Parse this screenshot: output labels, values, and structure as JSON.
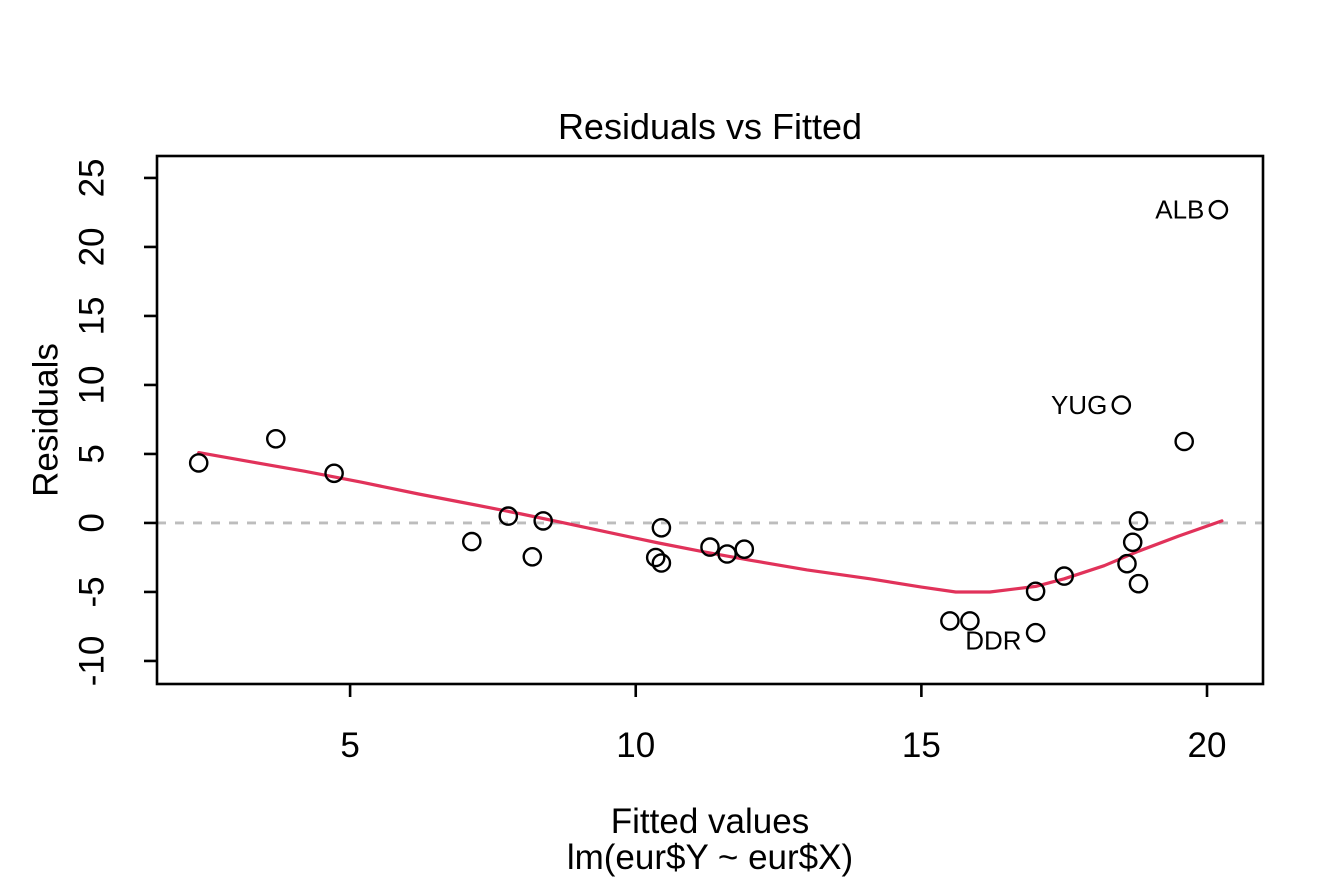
{
  "chart_data": {
    "type": "scatter",
    "title": "Residuals vs Fitted",
    "xlabel": "Fitted values",
    "sublabel": "lm(eur$Y ~ eur$X)",
    "ylabel": "Residuals",
    "xlim": [
      1.62,
      20.98
    ],
    "ylim": [
      -11.67,
      26.59
    ],
    "x_ticks": [
      5,
      10,
      15,
      20
    ],
    "y_ticks": [
      -10,
      -5,
      0,
      5,
      10,
      15,
      20,
      25
    ],
    "grid": false,
    "legend": "none",
    "zero_line_y": 0,
    "colors": {
      "point_stroke": "#000000",
      "smoother": "#E1325A",
      "zero_line": "#BDBDBD",
      "axis": "#000000",
      "background": "#FFFFFF"
    },
    "points": [
      {
        "x": 2.35,
        "y": 4.35
      },
      {
        "x": 3.7,
        "y": 6.1
      },
      {
        "x": 4.72,
        "y": 3.6
      },
      {
        "x": 7.13,
        "y": -1.35
      },
      {
        "x": 7.77,
        "y": 0.5
      },
      {
        "x": 8.19,
        "y": -2.45
      },
      {
        "x": 8.38,
        "y": 0.15
      },
      {
        "x": 10.35,
        "y": -2.5
      },
      {
        "x": 10.45,
        "y": -0.35
      },
      {
        "x": 10.45,
        "y": -2.9
      },
      {
        "x": 11.3,
        "y": -1.75
      },
      {
        "x": 11.6,
        "y": -2.25
      },
      {
        "x": 11.9,
        "y": -1.9
      },
      {
        "x": 15.5,
        "y": -7.1
      },
      {
        "x": 15.85,
        "y": -7.1
      },
      {
        "x": 17.0,
        "y": -4.95
      },
      {
        "x": 17.0,
        "y": -7.95,
        "label": "DDR",
        "label_dy": 8
      },
      {
        "x": 17.5,
        "y": -3.85
      },
      {
        "x": 18.5,
        "y": 8.55,
        "label": "YUG"
      },
      {
        "x": 18.6,
        "y": -2.95
      },
      {
        "x": 18.7,
        "y": -1.4
      },
      {
        "x": 18.8,
        "y": 0.15
      },
      {
        "x": 18.8,
        "y": -4.4
      },
      {
        "x": 19.6,
        "y": 5.9
      },
      {
        "x": 20.2,
        "y": 22.7,
        "label": "ALB"
      }
    ],
    "smoother_line": [
      [
        2.35,
        5.1
      ],
      [
        3.3,
        4.4
      ],
      [
        4.2,
        3.75
      ],
      [
        5.2,
        2.95
      ],
      [
        6.2,
        2.1
      ],
      [
        7.2,
        1.3
      ],
      [
        8.0,
        0.65
      ],
      [
        8.8,
        -0.05
      ],
      [
        9.6,
        -0.75
      ],
      [
        10.4,
        -1.45
      ],
      [
        11.2,
        -2.1
      ],
      [
        12.0,
        -2.7
      ],
      [
        13.0,
        -3.4
      ],
      [
        14.1,
        -4.05
      ],
      [
        15.0,
        -4.65
      ],
      [
        15.6,
        -5.0
      ],
      [
        16.2,
        -5.0
      ],
      [
        17.0,
        -4.6
      ],
      [
        17.5,
        -4.05
      ],
      [
        18.2,
        -3.1
      ],
      [
        18.8,
        -2.05
      ],
      [
        19.5,
        -0.95
      ],
      [
        20.26,
        0.15
      ]
    ],
    "annotated_points": [
      "ALB",
      "YUG",
      "DDR"
    ]
  }
}
